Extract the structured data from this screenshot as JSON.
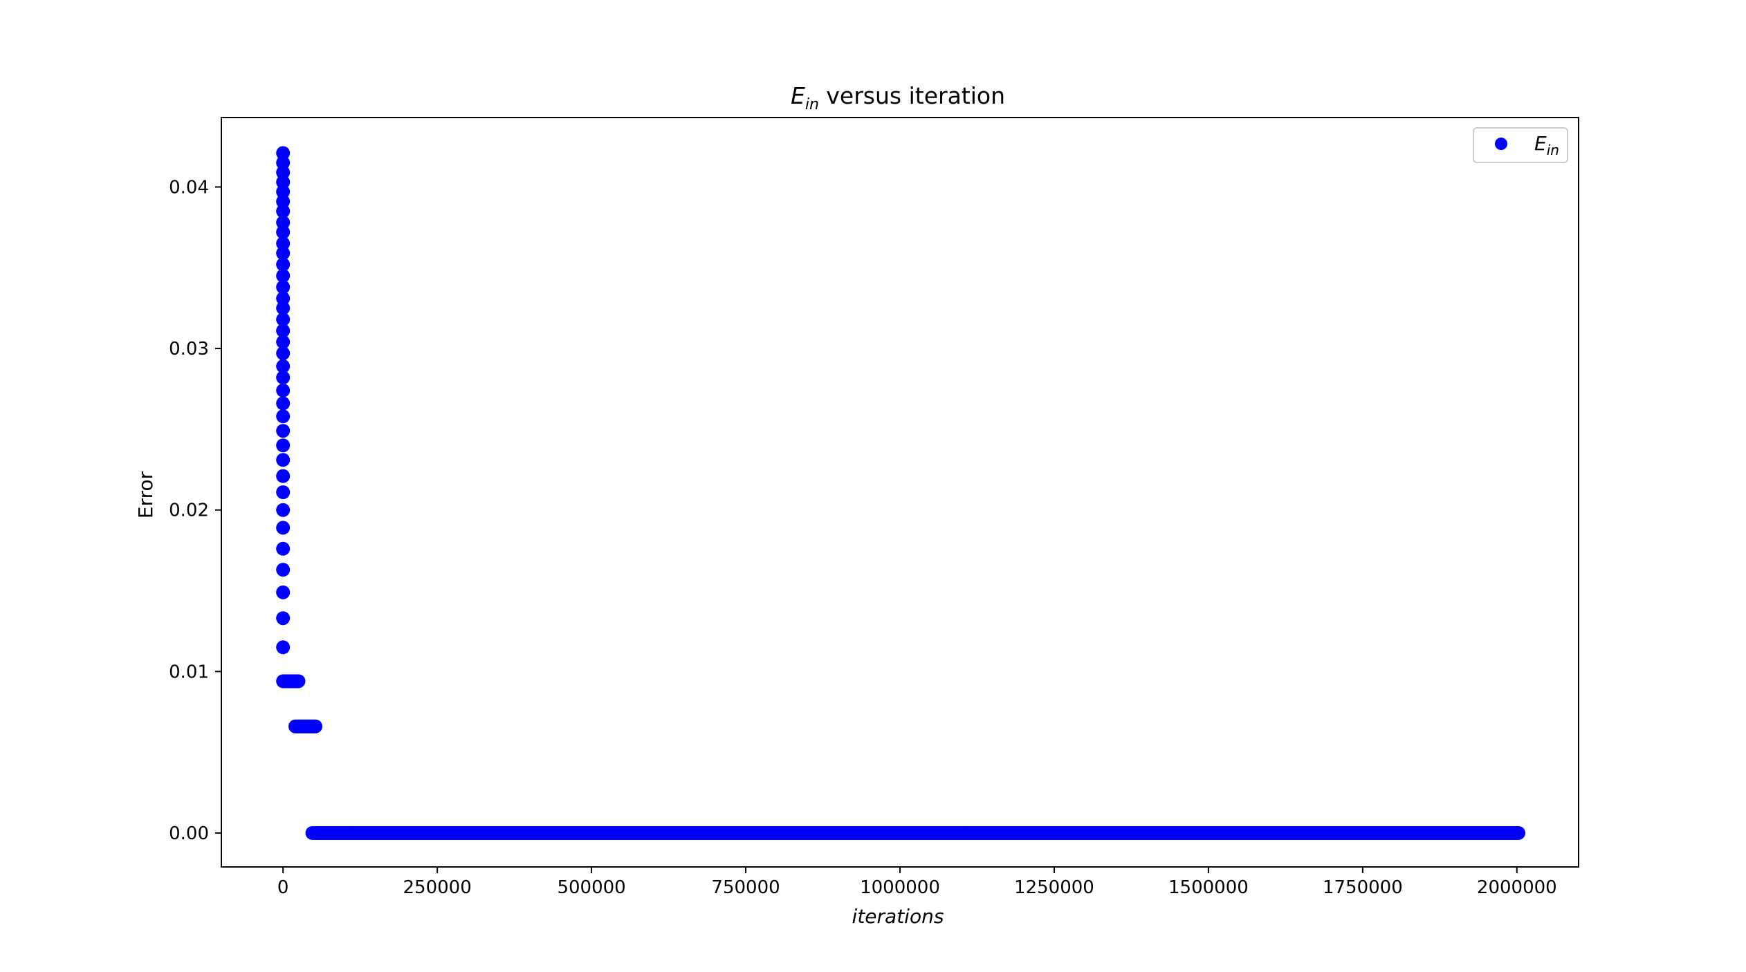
{
  "chart_data": {
    "type": "scatter",
    "title": {
      "main": "E",
      "sub": "in",
      "rest": " versus iteration"
    },
    "xlabel": "iterations",
    "ylabel": "Error",
    "xlim": [
      -100000,
      2100000
    ],
    "ylim": [
      -0.0021,
      0.0443
    ],
    "xticks": [
      0,
      250000,
      500000,
      750000,
      1000000,
      1250000,
      1500000,
      1750000,
      2000000
    ],
    "xtick_labels": [
      "0",
      "250000",
      "500000",
      "750000",
      "1000000",
      "1250000",
      "1500000",
      "1750000",
      "2000000"
    ],
    "yticks": [
      0.0,
      0.01,
      0.02,
      0.03,
      0.04
    ],
    "ytick_labels": [
      "0.00",
      "0.01",
      "0.02",
      "0.03",
      "0.04"
    ],
    "grid": false,
    "legend_position": "top-right",
    "series": [
      {
        "name": {
          "main": "E",
          "sub": "in"
        },
        "color": "#0000ff",
        "marker": "circle",
        "points": [
          [
            0,
            0.0421
          ],
          [
            0,
            0.0415
          ],
          [
            0,
            0.0409
          ],
          [
            0,
            0.0403
          ],
          [
            0,
            0.0397
          ],
          [
            0,
            0.0391
          ],
          [
            0,
            0.0385
          ],
          [
            0,
            0.0378
          ],
          [
            0,
            0.0372
          ],
          [
            0,
            0.0365
          ],
          [
            0,
            0.0359
          ],
          [
            0,
            0.0352
          ],
          [
            0,
            0.0345
          ],
          [
            0,
            0.0338
          ],
          [
            0,
            0.0331
          ],
          [
            0,
            0.0325
          ],
          [
            0,
            0.0318
          ],
          [
            0,
            0.0311
          ],
          [
            0,
            0.0304
          ],
          [
            0,
            0.0297
          ],
          [
            0,
            0.0289
          ],
          [
            0,
            0.0282
          ],
          [
            0,
            0.0274
          ],
          [
            0,
            0.0266
          ],
          [
            0,
            0.0258
          ],
          [
            0,
            0.0249
          ],
          [
            0,
            0.024
          ],
          [
            0,
            0.0231
          ],
          [
            0,
            0.0221
          ],
          [
            0,
            0.0211
          ],
          [
            0,
            0.02
          ],
          [
            0,
            0.0189
          ],
          [
            0,
            0.0176
          ],
          [
            0,
            0.0163
          ],
          [
            0,
            0.0149
          ],
          [
            0,
            0.0133
          ],
          [
            0,
            0.0115
          ],
          [
            0,
            0.0094
          ],
          [
            2500,
            0.0094
          ],
          [
            5000,
            0.0094
          ],
          [
            7500,
            0.0094
          ],
          [
            10000,
            0.0094
          ],
          [
            12500,
            0.0094
          ],
          [
            15000,
            0.0094
          ],
          [
            17500,
            0.0094
          ],
          [
            20000,
            0.0094
          ],
          [
            22500,
            0.0094
          ],
          [
            25000,
            0.0094
          ],
          [
            20000,
            0.0066
          ],
          [
            22500,
            0.0066
          ],
          [
            25000,
            0.0066
          ],
          [
            27500,
            0.0066
          ],
          [
            30000,
            0.0066
          ],
          [
            32500,
            0.0066
          ],
          [
            35000,
            0.0066
          ],
          [
            37500,
            0.0066
          ],
          [
            40000,
            0.0066
          ],
          [
            42500,
            0.0066
          ],
          [
            45000,
            0.0066
          ],
          [
            47500,
            0.0066
          ],
          [
            50000,
            0.0066
          ],
          [
            52500,
            0.0066
          ]
        ],
        "tail": {
          "x_start": 47500,
          "x_end": 2002500,
          "x_step": 2500,
          "y": 0.0
        }
      }
    ]
  }
}
